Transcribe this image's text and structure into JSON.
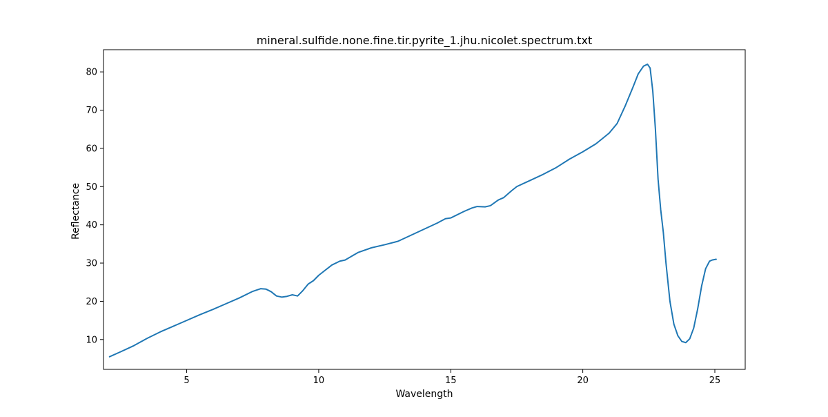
{
  "chart_data": {
    "type": "line",
    "title": "mineral.sulfide.none.fine.tir.pyrite_1.jhu.nicolet.spectrum.txt",
    "xlabel": "Wavelength",
    "ylabel": "Reflectance",
    "xlim": [
      1.85,
      26.15
    ],
    "ylim": [
      2.2,
      85.8
    ],
    "xticks": [
      5,
      10,
      15,
      20,
      25
    ],
    "yticks": [
      10,
      20,
      30,
      40,
      50,
      60,
      70,
      80
    ],
    "grid": false,
    "line_color": "#1f77b4",
    "series": [
      {
        "x": [
          2.08,
          2.5,
          3.0,
          3.5,
          4.0,
          4.5,
          5.0,
          5.5,
          6.0,
          6.5,
          7.0,
          7.5,
          7.8,
          8.0,
          8.2,
          8.4,
          8.6,
          8.8,
          9.0,
          9.2,
          9.4,
          9.6,
          9.8,
          10.0,
          10.5,
          10.8,
          11.0,
          11.5,
          12.0,
          12.5,
          13.0,
          13.5,
          14.0,
          14.5,
          14.8,
          15.0,
          15.5,
          15.8,
          16.0,
          16.3,
          16.5,
          16.8,
          17.0,
          17.3,
          17.5,
          18.0,
          18.5,
          19.0,
          19.5,
          20.0,
          20.5,
          21.0,
          21.3,
          21.6,
          21.9,
          22.1,
          22.3,
          22.45,
          22.55,
          22.65,
          22.75,
          22.85,
          22.95,
          23.05,
          23.15,
          23.3,
          23.45,
          23.6,
          23.75,
          23.9,
          24.05,
          24.2,
          24.35,
          24.5,
          24.65,
          24.8,
          24.9,
          25.05
        ],
        "y": [
          5.5,
          6.8,
          8.4,
          10.3,
          12.0,
          13.5,
          15.0,
          16.5,
          17.9,
          19.4,
          20.9,
          22.6,
          23.3,
          23.2,
          22.5,
          21.4,
          21.1,
          21.3,
          21.7,
          21.4,
          22.8,
          24.5,
          25.4,
          26.8,
          29.5,
          30.5,
          30.8,
          32.8,
          34.0,
          34.8,
          35.7,
          37.3,
          38.9,
          40.5,
          41.6,
          41.8,
          43.5,
          44.4,
          44.8,
          44.7,
          45.0,
          46.5,
          47.1,
          48.9,
          50.0,
          51.6,
          53.2,
          55.0,
          57.2,
          59.1,
          61.2,
          64.0,
          66.5,
          71.0,
          76.0,
          79.5,
          81.5,
          82.0,
          81.0,
          75.0,
          65.0,
          52.0,
          44.0,
          38.0,
          30.0,
          20.0,
          14.0,
          11.0,
          9.5,
          9.2,
          10.2,
          13.0,
          18.0,
          24.0,
          28.5,
          30.5,
          30.8,
          31.0
        ]
      }
    ]
  }
}
